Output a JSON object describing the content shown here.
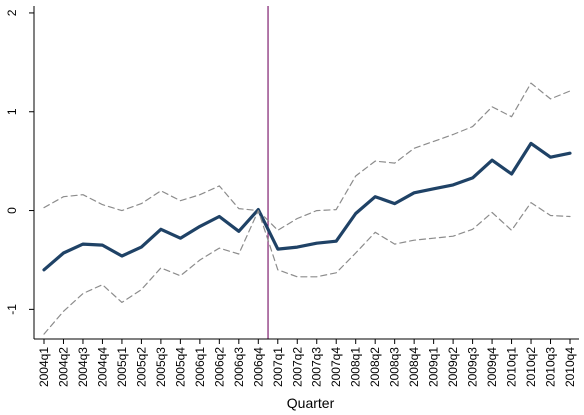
{
  "chart_data": {
    "type": "line",
    "xlabel": "Quarter",
    "ylabel": "",
    "ylim": [
      -1.3,
      2.05
    ],
    "yticks": [
      -1,
      0,
      1,
      2
    ],
    "ytick_labels": [
      "-1",
      "0",
      "1",
      "2"
    ],
    "grid": false,
    "legend": "none",
    "categories": [
      "2004q1",
      "2004q2",
      "2004q3",
      "2004q4",
      "2005q1",
      "2005q2",
      "2005q3",
      "2005q4",
      "2006q1",
      "2006q2",
      "2006q3",
      "2006q4",
      "2007q1",
      "2007q2",
      "2007q3",
      "2007q4",
      "2008q1",
      "2008q2",
      "2008q3",
      "2008q4",
      "2009q1",
      "2009q2",
      "2009q3",
      "2009q4",
      "2010q1",
      "2010q2",
      "2010q3",
      "2010q4"
    ],
    "vline": {
      "at": "2006q4",
      "offset": 0.5,
      "color": "#7f1f6f"
    },
    "series": [
      {
        "role": "upper",
        "style": "dashed",
        "color": "#8c8c8c",
        "values": [
          0.03,
          0.14,
          0.16,
          0.06,
          0.0,
          0.07,
          0.2,
          0.1,
          0.16,
          0.25,
          0.02,
          0.0,
          -0.2,
          -0.08,
          0.0,
          0.01,
          0.35,
          0.5,
          0.48,
          0.63,
          0.7,
          0.77,
          0.85,
          1.05,
          0.95,
          1.29,
          1.13,
          1.21
        ]
      },
      {
        "role": "estimate",
        "style": "solid",
        "color": "#1f4266",
        "values": [
          -0.6,
          -0.43,
          -0.34,
          -0.35,
          -0.46,
          -0.37,
          -0.19,
          -0.28,
          -0.16,
          -0.06,
          -0.21,
          0.01,
          -0.39,
          -0.37,
          -0.33,
          -0.31,
          -0.03,
          0.14,
          0.07,
          0.18,
          0.22,
          0.26,
          0.33,
          0.51,
          0.37,
          0.68,
          0.54,
          0.58
        ]
      },
      {
        "role": "lower",
        "style": "dashed",
        "color": "#8c8c8c",
        "values": [
          -1.25,
          -1.02,
          -0.84,
          -0.75,
          -0.93,
          -0.8,
          -0.58,
          -0.66,
          -0.5,
          -0.38,
          -0.44,
          0.0,
          -0.6,
          -0.67,
          -0.67,
          -0.63,
          -0.43,
          -0.22,
          -0.34,
          -0.3,
          -0.28,
          -0.26,
          -0.19,
          -0.02,
          -0.2,
          0.08,
          -0.05,
          -0.06
        ]
      }
    ]
  }
}
